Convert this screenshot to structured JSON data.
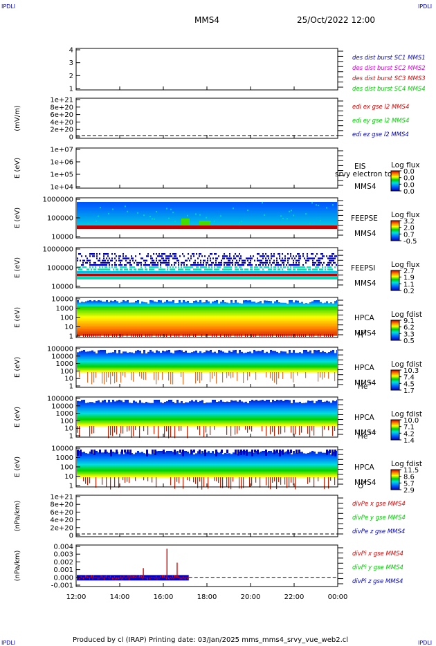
{
  "corners": {
    "tl": "IPDLI",
    "tr": "IPDLI",
    "bl": "IPDLI",
    "br": "IPDLI"
  },
  "header": {
    "spacecraft": "MMS4",
    "datetime": "25/Oct/2022 12:00"
  },
  "footer": {
    "text": "Produced by cl (IRAP)   Printing date: 03/Jan/2025   mms_mms4_srvy_vue_web2.cl"
  },
  "colors": {
    "blue": "#0000c8",
    "magenta": "#e000e0",
    "red": "#dd0000",
    "green": "#00cc00",
    "border": "#000000"
  },
  "chart_data": {
    "type": "multi-panel",
    "x_axis": {
      "ticks": [
        "12:00",
        "14:00",
        "16:00",
        "18:00",
        "20:00",
        "22:00",
        "00:00"
      ],
      "range": [
        "12:00",
        "00:00"
      ]
    },
    "panels": [
      {
        "id": "p1",
        "ylabel": "",
        "yticks": [
          "1",
          "2",
          "3",
          "4"
        ],
        "legend": [
          {
            "text": "des dist burst SC1 MMS1",
            "color": "#0000c8"
          },
          {
            "text": "des dist burst SC2 MMS2",
            "color": "#e000e0"
          },
          {
            "text": "des dist burst SC3 MMS3",
            "color": "#dd0000"
          },
          {
            "text": "des dist burst SC4 MMS4",
            "color": "#00cc00"
          }
        ]
      },
      {
        "id": "p2",
        "ylabel": "(mV/m)",
        "yticks": [
          "0",
          "2e+20",
          "4e+20",
          "6e+20",
          "8e+20",
          "1e+21"
        ],
        "legend": [
          {
            "text": "edi ex gse l2 MMS4",
            "color": "#dd0000"
          },
          {
            "text": "edi ey gse l2 MMS4",
            "color": "#00cc00"
          },
          {
            "text": "edi ez gse l2 MMS4",
            "color": "#0000c8"
          }
        ]
      },
      {
        "id": "p3",
        "ylabel": "E (eV)",
        "yticks": [
          "1e+04",
          "1e+05",
          "1e+06",
          "1e+07"
        ],
        "instrument": "EIS",
        "sc": "MMS4",
        "overlay": "srvy electron to",
        "cbar": {
          "title": "Log flux",
          "ticks": [
            "0.0",
            "0.0",
            "0.0",
            "0.0"
          ]
        }
      },
      {
        "id": "p4",
        "ylabel": "E (eV)",
        "yticks": [
          "10000",
          "100000",
          "1000000"
        ],
        "instrument": "FEEPSE",
        "sc": "MMS4",
        "cbar": {
          "title": "Log flux",
          "ticks": [
            "3.2",
            "2.0",
            "0.7",
            "-0.5"
          ]
        }
      },
      {
        "id": "p5",
        "ylabel": "E (eV)",
        "yticks": [
          "10000",
          "100000",
          "1000000"
        ],
        "instrument": "FEEPSI",
        "sc": "MMS4",
        "cbar": {
          "title": "Log flux",
          "ticks": [
            "2.7",
            "1.9",
            "1.1",
            "0.2"
          ]
        }
      },
      {
        "id": "p6",
        "ylabel": "E (eV)",
        "yticks": [
          "1",
          "10",
          "100",
          "1000",
          "10000"
        ],
        "instrument": "HPCA",
        "sc": "MMS4",
        "species": "H",
        "charge": "+",
        "cbar": {
          "title": "Log fdist",
          "ticks": [
            "9.1",
            "6.2",
            "3.3",
            "0.5"
          ]
        }
      },
      {
        "id": "p7",
        "ylabel": "E (eV)",
        "yticks": [
          "1",
          "10",
          "100",
          "1000",
          "10000",
          "100000"
        ],
        "instrument": "HPCA",
        "sc": "MMS4",
        "species": "He",
        "charge": "+",
        "cbar": {
          "title": "Log fdist",
          "ticks": [
            "10.3",
            "7.4",
            "4.5",
            "1.7"
          ]
        }
      },
      {
        "id": "p8",
        "ylabel": "E (eV)",
        "yticks": [
          "1",
          "10",
          "100",
          "1000",
          "10000",
          "100000"
        ],
        "instrument": "HPCA",
        "sc": "MMS4",
        "species": "He",
        "charge": "++",
        "cbar": {
          "title": "Log fdist",
          "ticks": [
            "10.0",
            "7.1",
            "4.2",
            "1.4"
          ]
        }
      },
      {
        "id": "p9",
        "ylabel": "E (eV)",
        "yticks": [
          "1",
          "10",
          "100",
          "1000",
          "10000"
        ],
        "instrument": "HPCA",
        "sc": "MMS4",
        "species": "O",
        "charge": "+",
        "cbar": {
          "title": "Log fdist",
          "ticks": [
            "11.5",
            "8.6",
            "5.7",
            "2.9"
          ]
        }
      },
      {
        "id": "p10",
        "ylabel": "(nPa/km)",
        "yticks": [
          "0",
          "2e+20",
          "4e+20",
          "6e+20",
          "8e+20",
          "1e+21"
        ],
        "legend": [
          {
            "text": "divPe x gse MMS4",
            "color": "#dd0000"
          },
          {
            "text": "divPe y gse MMS4",
            "color": "#00cc00"
          },
          {
            "text": "divPe z gse MMS4",
            "color": "#0000c8"
          }
        ]
      },
      {
        "id": "p11",
        "ylabel": "(nPa/km)",
        "yticks": [
          "-0.001",
          "0.000",
          "0.001",
          "0.002",
          "0.003",
          "0.004"
        ],
        "legend": [
          {
            "text": "divPi x gse MMS4",
            "color": "#dd0000"
          },
          {
            "text": "divPi y gse MMS4",
            "color": "#00cc00"
          },
          {
            "text": "divPi z gse MMS4",
            "color": "#0000c8"
          }
        ],
        "series_end": "17:10",
        "spikes": [
          {
            "x": "15:05",
            "y": 0.0012
          },
          {
            "x": "16:10",
            "y": 0.0037
          },
          {
            "x": "16:38",
            "y": 0.0019
          }
        ]
      }
    ]
  }
}
